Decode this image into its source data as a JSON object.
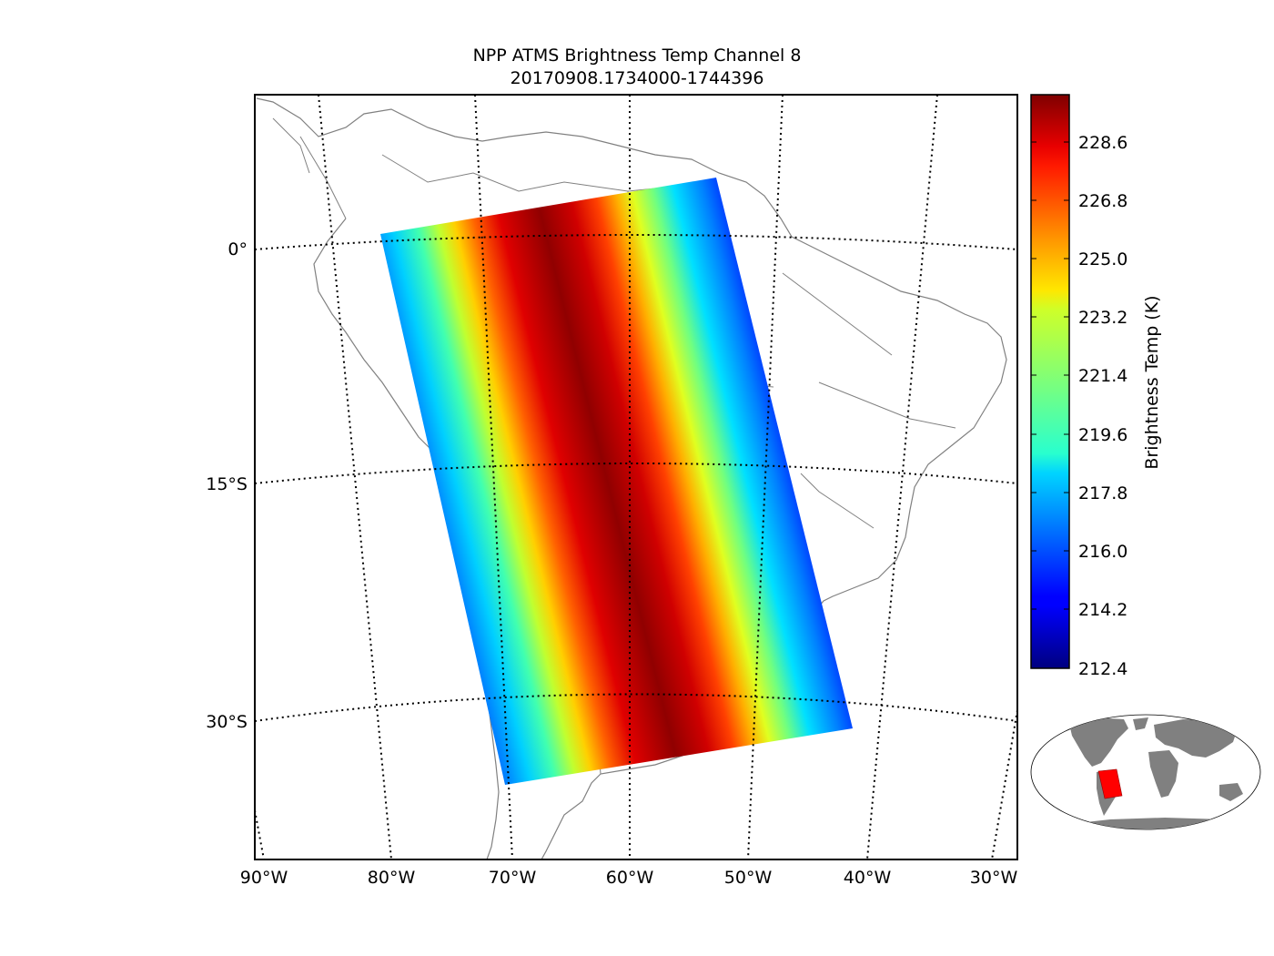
{
  "title": {
    "line1": "NPP ATMS Brightness Temp Channel 8",
    "line2": "20170908.1734000-1744396"
  },
  "map": {
    "lat_labels": [
      "0°",
      "15°S",
      "30°S"
    ],
    "lon_labels": [
      "90°W",
      "80°W",
      "70°W",
      "60°W",
      "50°W",
      "40°W",
      "30°W"
    ]
  },
  "colorbar": {
    "label": "Brightness Temp (K)",
    "colormap": "jet",
    "min": 212.4,
    "max": 230.1,
    "ticks": [
      "228.6",
      "226.8",
      "225.0",
      "223.2",
      "221.4",
      "219.6",
      "217.8",
      "216.0",
      "214.2",
      "212.4"
    ]
  },
  "colors": {
    "land_outline": "#808080",
    "inset_land": "#808080",
    "inset_swath": "#ff0000",
    "frame": "#000000"
  }
}
